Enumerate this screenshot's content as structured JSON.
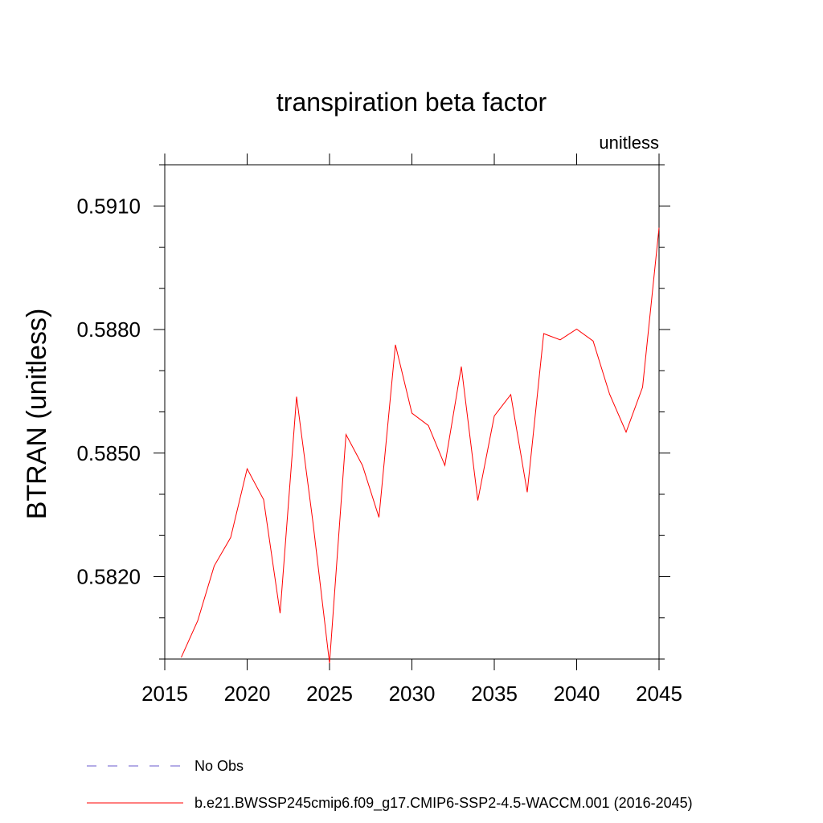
{
  "chart_data": {
    "type": "line",
    "title": "transpiration beta factor",
    "units_label": "unitless",
    "xlabel": "",
    "ylabel": "BTRAN  (unitless)",
    "xlim": [
      2015,
      2045
    ],
    "ylim": [
      0.58,
      0.592
    ],
    "x_ticks": [
      2015,
      2020,
      2025,
      2030,
      2035,
      2040,
      2045
    ],
    "x_tick_labels": [
      "2015",
      "2020",
      "2025",
      "2030",
      "2035",
      "2040",
      "2045"
    ],
    "y_ticks": [
      0.582,
      0.585,
      0.588,
      0.591
    ],
    "y_tick_labels": [
      "0.5820",
      "0.5850",
      "0.5880",
      "0.5910"
    ],
    "grid": false,
    "legend_position": "bottom-left",
    "series": [
      {
        "name": "No Obs",
        "style": "dashed",
        "color": "#6a5acd",
        "x": [],
        "values": []
      },
      {
        "name": "b.e21.BWSSP245cmip6.f09_g17.CMIP6-SSP2-4.5-WACCM.001 (2016-2045)",
        "style": "solid",
        "color": "#ff0000",
        "x": [
          2016,
          2017,
          2018,
          2019,
          2020,
          2021,
          2022,
          2023,
          2024,
          2025,
          2026,
          2027,
          2028,
          2029,
          2030,
          2031,
          2032,
          2033,
          2034,
          2035,
          2036,
          2037,
          2038,
          2039,
          2040,
          2041,
          2042,
          2043,
          2044,
          2045
        ],
        "values": [
          0.58004,
          0.58093,
          0.58226,
          0.58295,
          0.58462,
          0.58387,
          0.58111,
          0.58637,
          0.5833,
          0.5799,
          0.58545,
          0.5847,
          0.58344,
          0.58763,
          0.58597,
          0.58567,
          0.5847,
          0.5871,
          0.58385,
          0.5859,
          0.58642,
          0.58405,
          0.5879,
          0.58775,
          0.58801,
          0.58772,
          0.58643,
          0.58551,
          0.5866,
          0.59047
        ]
      }
    ]
  }
}
